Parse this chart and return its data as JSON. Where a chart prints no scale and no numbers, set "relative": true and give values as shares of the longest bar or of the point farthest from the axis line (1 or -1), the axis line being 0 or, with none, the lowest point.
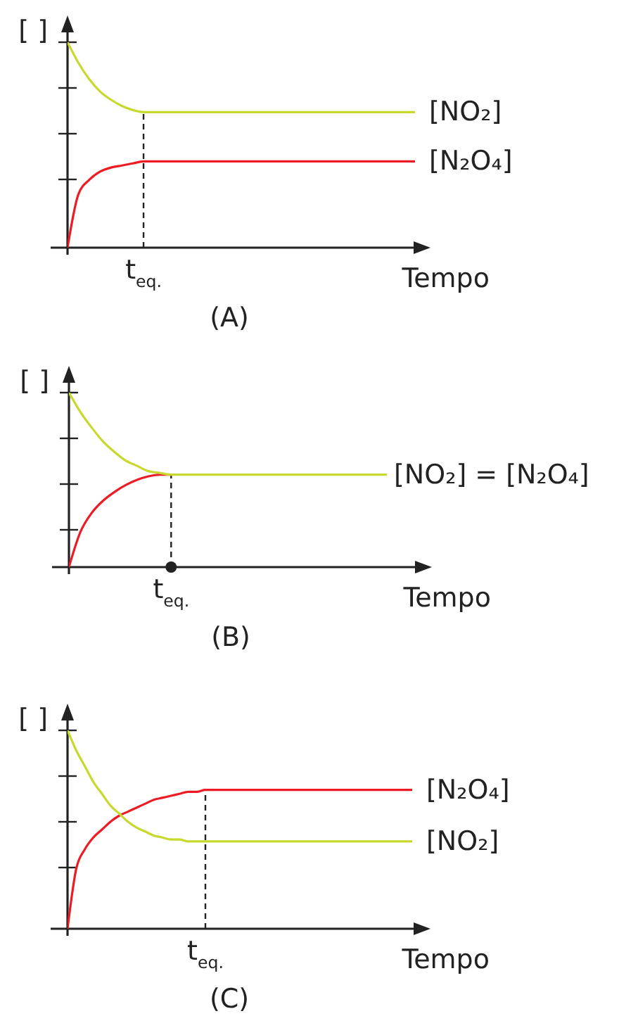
{
  "chart_data": [
    {
      "type": "line",
      "title": "(A)",
      "xlabel": "Tempo",
      "ylabel": "[ ]",
      "relative": true,
      "marker": "none",
      "categories": [
        null,
        null,
        null,
        null,
        null,
        null,
        null,
        null,
        null,
        null,
        null,
        null,
        null,
        null,
        null,
        null,
        null,
        null,
        null,
        null,
        null,
        null,
        null,
        null,
        null,
        null,
        null,
        null,
        null,
        null,
        null,
        null,
        null
      ],
      "series": [
        {
          "name": "[N₂O₄]",
          "color": "#ec1c24",
          "values": [
            0,
            0.26,
            0.33,
            0.37,
            0.39,
            0.4,
            0.41,
            0.42,
            0.42,
            0.42,
            0.42,
            0.42,
            0.42,
            0.42,
            0.42,
            0.42,
            0.42,
            0.42,
            0.42,
            0.42,
            0.42,
            0.42,
            0.42,
            0.42,
            0.42,
            0.42,
            0.42,
            0.42,
            0.42,
            0.42,
            0.42,
            0.42,
            0.42
          ]
        },
        {
          "name": "[NO₂]",
          "color": "#c8d92e",
          "values": [
            1,
            0.9,
            0.82,
            0.76,
            0.72,
            0.69,
            0.67,
            0.66,
            0.66,
            0.66,
            0.66,
            0.66,
            0.66,
            0.66,
            0.66,
            0.66,
            0.66,
            0.66,
            0.66,
            0.66,
            0.66,
            0.66,
            0.66,
            0.66,
            0.66,
            0.66,
            0.66,
            0.66,
            0.66,
            0.66,
            0.66,
            0.66,
            0.66
          ]
        }
      ],
      "annotations": [
        "t$_{eq.}$"
      ]
    },
    {
      "type": "line",
      "title": "(B)",
      "xlabel": "Tempo",
      "ylabel": "[ ]",
      "relative": true,
      "marker": "none",
      "categories": [
        null,
        null,
        null,
        null,
        null,
        null,
        null,
        null,
        null,
        null,
        null,
        null,
        null,
        null,
        null,
        null,
        null,
        null,
        null,
        null,
        null,
        null,
        null,
        null,
        null,
        null,
        null,
        null,
        null
      ],
      "series": [
        {
          "color": "#ec1c24",
          "values": [
            0,
            0.2,
            0.31,
            0.38,
            0.43,
            0.47,
            0.5,
            0.52,
            0.53,
            0.53,
            null,
            null,
            null,
            null,
            null,
            null,
            null,
            null,
            null,
            null,
            null,
            null,
            null,
            null,
            null,
            null,
            null,
            null,
            null
          ]
        },
        {
          "color": "#c8d92e",
          "values": [
            1,
            0.89,
            0.8,
            0.72,
            0.66,
            0.61,
            0.58,
            0.55,
            0.54,
            0.53,
            0.53,
            0.53,
            0.53,
            0.53,
            0.53,
            0.53,
            0.53,
            0.53,
            0.53,
            0.53,
            0.53,
            0.53,
            0.53,
            0.53,
            0.53,
            0.53,
            0.53,
            0.53,
            0.53
          ]
        }
      ],
      "annotations": [
        "t$_{eq.}$",
        "[NO₂] = [N₂O₄]"
      ]
    },
    {
      "type": "line",
      "title": "(C)",
      "xlabel": "Tempo",
      "ylabel": "[ ]",
      "relative": true,
      "marker": "none",
      "categories": [
        null,
        null,
        null,
        null,
        null,
        null,
        null,
        null,
        null,
        null,
        null,
        null,
        null,
        null,
        null,
        null,
        null,
        null,
        null,
        null,
        null,
        null,
        null,
        null,
        null,
        null,
        null,
        null,
        null,
        null,
        null,
        null,
        null,
        null,
        null,
        null,
        null,
        null,
        null,
        null,
        null
      ],
      "series": [
        {
          "name": "[N₂O₄]",
          "color": "#ec1c24",
          "values": [
            0,
            0.3,
            0.4,
            0.46,
            0.5,
            0.54,
            0.57,
            0.59,
            0.61,
            0.63,
            0.65,
            0.66,
            0.67,
            0.68,
            0.69,
            0.69,
            0.7,
            0.7,
            0.7,
            0.7,
            0.7,
            0.7,
            0.7,
            0.7,
            0.7,
            0.7,
            0.7,
            0.7,
            0.7,
            0.7,
            0.7,
            0.7,
            0.7,
            0.7,
            0.7,
            0.7,
            0.7,
            0.7,
            0.7,
            0.7,
            0.7
          ]
        },
        {
          "name": "[NO₂]",
          "color": "#c8d92e",
          "values": [
            1,
            0.9,
            0.82,
            0.74,
            0.68,
            0.62,
            0.58,
            0.54,
            0.51,
            0.49,
            0.47,
            0.46,
            0.45,
            0.45,
            0.44,
            0.44,
            0.44,
            0.44,
            0.44,
            0.44,
            0.44,
            0.44,
            0.44,
            0.44,
            0.44,
            0.44,
            0.44,
            0.44,
            0.44,
            0.44,
            0.44,
            0.44,
            0.44,
            0.44,
            0.44,
            0.44,
            0.44,
            0.44,
            0.44,
            0.44,
            0.44
          ]
        }
      ],
      "annotations": [
        "t$_{eq.}$"
      ]
    }
  ]
}
